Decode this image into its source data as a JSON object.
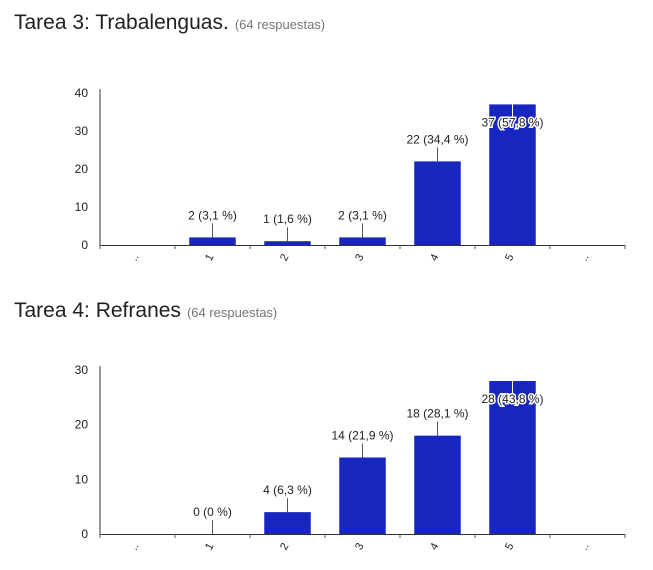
{
  "chart_data": [
    {
      "type": "bar",
      "title": "Tarea 3: Trabalenguas.",
      "subtitle": "(64 respuestas)",
      "categories": [
        "1",
        "2",
        "3",
        "4",
        "5"
      ],
      "values": [
        2,
        1,
        2,
        22,
        37
      ],
      "labels": [
        "2 (3,1 %)",
        "1 (1,6 %)",
        "2 (3,1 %)",
        "22 (34,4 %)",
        "37 (57,8 %)"
      ],
      "ylim": [
        0,
        40
      ],
      "yticks": [
        0,
        10,
        20,
        30,
        40
      ],
      "xlabel": "",
      "ylabel": "",
      "edge_ticks": [
        "..",
        ".."
      ],
      "color": "#1726bf",
      "grid": false,
      "legend": "none"
    },
    {
      "type": "bar",
      "title": "Tarea 4: Refranes",
      "subtitle": "(64 respuestas)",
      "categories": [
        "1",
        "2",
        "3",
        "4",
        "5"
      ],
      "values": [
        0,
        4,
        14,
        18,
        28
      ],
      "labels": [
        "0 (0 %)",
        "4 (6,3 %)",
        "14 (21,9 %)",
        "18 (28,1 %)",
        "28 (43,8 %)"
      ],
      "ylim": [
        0,
        28
      ],
      "yticks": [
        0,
        10,
        20,
        30
      ],
      "xlabel": "",
      "ylabel": "",
      "edge_ticks": [
        "..",
        ".."
      ],
      "color": "#1726bf",
      "grid": false,
      "legend": "none"
    }
  ]
}
